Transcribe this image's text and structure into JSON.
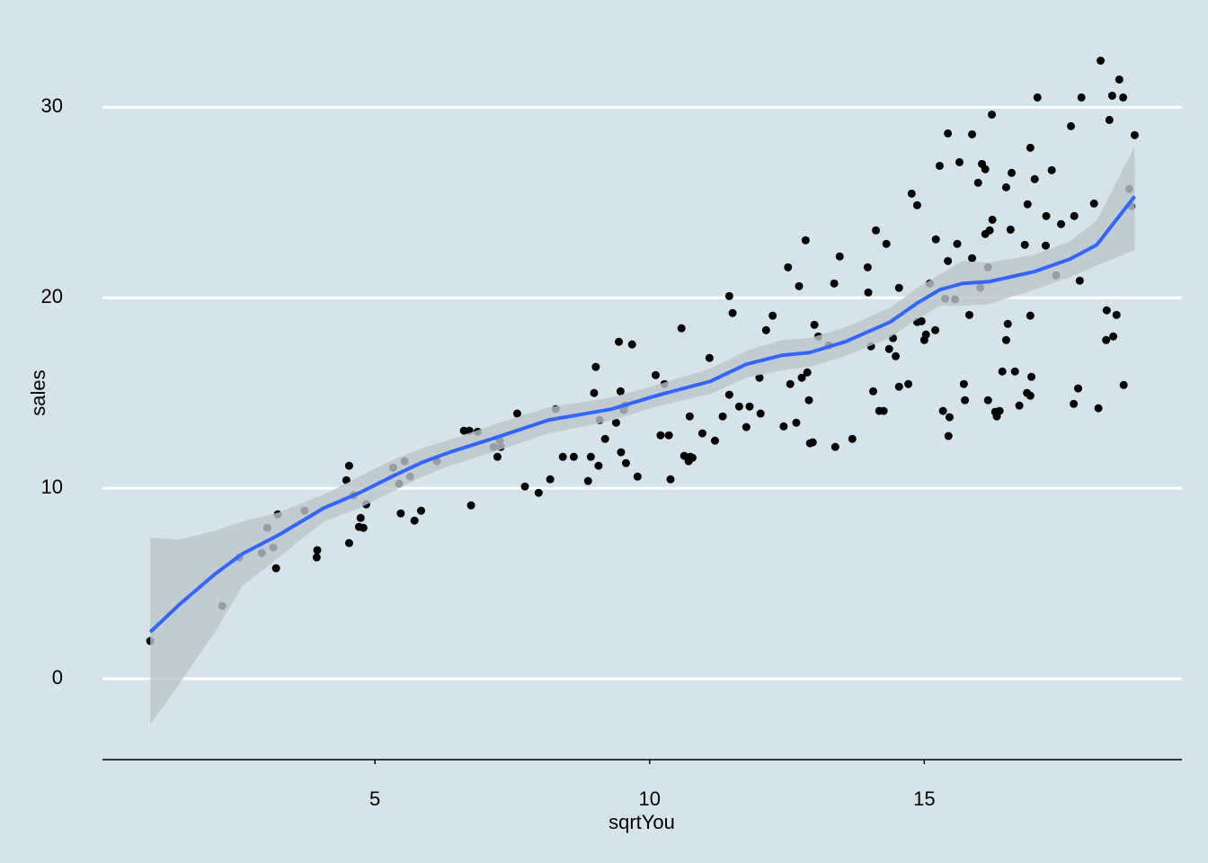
{
  "chart_data": {
    "type": "scatter",
    "x_label": "sqrtYou",
    "y_label": "sales",
    "xlim": [
      0.04,
      19.69
    ],
    "ylim": [
      -4.25,
      35.4
    ],
    "xticks": [
      5,
      10,
      15
    ],
    "yticks": [
      0,
      10,
      20,
      30
    ],
    "grid": true,
    "background": "#d5e4eb",
    "color": "#000000",
    "x": [
      0.91,
      2.22,
      2.53,
      2.94,
      3.04,
      3.15,
      3.2,
      3.23,
      3.72,
      3.94,
      3.95,
      4.48,
      4.53,
      4.53,
      4.61,
      4.71,
      4.74,
      4.79,
      4.84,
      5.33,
      5.44,
      5.47,
      5.54,
      5.64,
      5.72,
      5.84,
      6.13,
      6.62,
      6.72,
      6.75,
      6.87,
      7.16,
      7.23,
      7.27,
      7.29,
      7.59,
      7.73,
      7.98,
      8.19,
      8.29,
      8.42,
      8.62,
      8.88,
      8.93,
      8.99,
      9.02,
      9.07,
      9.09,
      9.19,
      9.39,
      9.44,
      9.47,
      9.48,
      9.53,
      9.55,
      9.57,
      9.68,
      9.78,
      10.11,
      10.2,
      10.27,
      10.35,
      10.38,
      10.58,
      10.63,
      10.71,
      10.73,
      10.74,
      10.78,
      10.96,
      11.09,
      11.19,
      11.33,
      11.45,
      11.45,
      11.51,
      11.63,
      11.76,
      11.82,
      12,
      12.02,
      12.12,
      12.24,
      12.44,
      12.52,
      12.56,
      12.67,
      12.72,
      12.77,
      12.84,
      12.87,
      12.9,
      12.92,
      12.97,
      13,
      13.07,
      13.26,
      13.36,
      13.38,
      13.46,
      13.69,
      13.97,
      13.98,
      14.03,
      14.07,
      14.12,
      14.18,
      14.26,
      14.31,
      14.36,
      14.43,
      14.48,
      14.54,
      14.54,
      14.71,
      14.77,
      14.87,
      14.87,
      14.95,
      15,
      15.03,
      15.1,
      15.2,
      15.21,
      15.28,
      15.34,
      15.38,
      15.43,
      15.43,
      15.44,
      15.46,
      15.56,
      15.6,
      15.64,
      15.72,
      15.74,
      15.82,
      15.87,
      15.87,
      15.98,
      16.02,
      16.05,
      16.11,
      16.11,
      16.16,
      16.16,
      16.19,
      16.23,
      16.24,
      16.29,
      16.32,
      16.37,
      16.42,
      16.49,
      16.49,
      16.52,
      16.59,
      16.57,
      16.65,
      16.73,
      16.83,
      16.88,
      16.87,
      16.93,
      16.93,
      16.93,
      16.95,
      17.01,
      17.06,
      17.21,
      17.22,
      17.32,
      17.4,
      17.49,
      17.67,
      17.72,
      17.73,
      17.8,
      17.83,
      17.86,
      18.09,
      18.17,
      18.21,
      18.31,
      18.32,
      18.37,
      18.42,
      18.44,
      18.5,
      18.55,
      18.62,
      18.63,
      18.73,
      18.77,
      18.83
    ],
    "values": [
      1.98,
      3.82,
      6.37,
      6.6,
      7.92,
      6.89,
      5.8,
      8.63,
      8.82,
      6.37,
      6.75,
      10.42,
      11.18,
      7.12,
      9.62,
      7.97,
      8.44,
      7.92,
      9.15,
      11.08,
      10.24,
      8.68,
      11.42,
      10.61,
      8.3,
      8.82,
      11.42,
      13.02,
      13.02,
      9.1,
      12.97,
      12.17,
      11.65,
      12.5,
      12.17,
      13.92,
      10.09,
      9.76,
      10.47,
      14.15,
      11.65,
      11.65,
      10.38,
      11.65,
      15,
      16.37,
      11.18,
      13.58,
      12.59,
      13.44,
      17.69,
      15.09,
      11.89,
      14.1,
      14.34,
      11.32,
      17.55,
      10.61,
      15.94,
      12.78,
      15.47,
      12.78,
      10.47,
      18.4,
      11.7,
      11.42,
      13.77,
      11.65,
      11.6,
      12.88,
      16.84,
      12.5,
      13.77,
      20.09,
      14.91,
      19.2,
      14.29,
      13.21,
      14.29,
      15.8,
      13.92,
      18.3,
      19.06,
      13.25,
      21.6,
      15.47,
      13.44,
      20.61,
      15.8,
      23.02,
      16.08,
      14.62,
      12.36,
      12.41,
      18.58,
      17.97,
      17.5,
      20.75,
      12.17,
      22.17,
      12.59,
      21.6,
      20.28,
      17.45,
      15.09,
      23.54,
      14.06,
      14.06,
      22.83,
      17.31,
      17.88,
      16.93,
      20.52,
      15.33,
      15.47,
      25.47,
      24.86,
      18.73,
      18.77,
      17.78,
      18.07,
      20.75,
      18.3,
      23.07,
      26.93,
      14.06,
      19.95,
      21.93,
      28.63,
      12.74,
      13.73,
      19.91,
      22.83,
      27.12,
      15.47,
      14.62,
      19.1,
      22.08,
      28.58,
      26.04,
      20.52,
      27.03,
      26.75,
      23.35,
      21.6,
      14.62,
      23.54,
      29.62,
      24.1,
      14.01,
      13.77,
      14.06,
      16.13,
      17.78,
      25.8,
      18.63,
      26.56,
      23.58,
      16.13,
      14.34,
      22.78,
      24.91,
      15,
      14.86,
      19.06,
      27.88,
      15.85,
      26.23,
      30.52,
      22.74,
      24.29,
      26.7,
      21.18,
      23.87,
      29.01,
      14.43,
      24.29,
      15.24,
      20.9,
      30.52,
      24.95,
      14.2,
      32.45,
      17.78,
      19.34,
      29.34,
      30.61,
      17.97,
      19.1,
      31.46,
      30.52,
      15.42,
      25.71,
      24.81,
      28.54
    ],
    "smooth": {
      "color": "#3366ff",
      "band_color": "#bcc5cb",
      "x": [
        0.91,
        1.45,
        2.1,
        2.59,
        3.25,
        4.07,
        4.72,
        5.38,
        5.87,
        6.36,
        7.18,
        8.16,
        9.3,
        10.12,
        11.1,
        11.76,
        12.41,
        12.91,
        13.56,
        14.38,
        14.87,
        15.28,
        15.69,
        16.18,
        17,
        17.65,
        18.14,
        18.83
      ],
      "values": [
        2.45,
        3.92,
        5.52,
        6.56,
        7.55,
        8.96,
        9.76,
        10.71,
        11.37,
        11.89,
        12.64,
        13.58,
        14.15,
        14.86,
        15.61,
        16.51,
        16.98,
        17.12,
        17.69,
        18.73,
        19.72,
        20.42,
        20.75,
        20.85,
        21.37,
        22.03,
        22.78,
        25.33
      ],
      "upper": [
        7.41,
        7.31,
        7.78,
        8.25,
        8.73,
        9.67,
        10.61,
        11.56,
        12.12,
        12.55,
        13.35,
        14.25,
        14.76,
        15.42,
        16.27,
        17.22,
        17.78,
        17.88,
        18.44,
        19.48,
        20.52,
        21.23,
        21.93,
        21.84,
        22.26,
        22.97,
        24.06,
        27.97
      ],
      "lower": [
        -2.41,
        -0.24,
        2.5,
        4.86,
        6.37,
        8.25,
        8.96,
        9.91,
        10.61,
        11.18,
        11.93,
        12.88,
        13.54,
        14.29,
        14.95,
        15.8,
        16.18,
        16.37,
        16.93,
        17.92,
        18.87,
        19.58,
        19.58,
        19.67,
        20.42,
        21.08,
        21.7,
        22.5
      ]
    }
  }
}
